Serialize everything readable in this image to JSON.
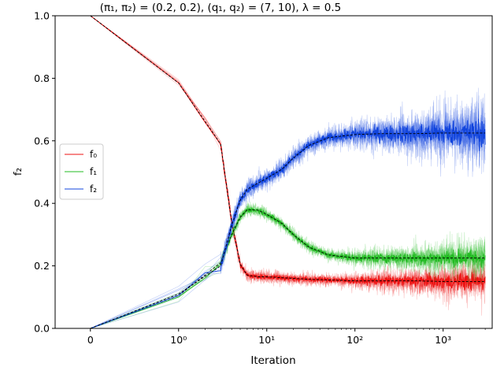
{
  "chart_data": {
    "type": "line",
    "title": "(π₁, π₂) = (0.2, 0.2),  (q₁, q₂) = (7, 10),  λ = 0.5",
    "xlabel": "Iteration",
    "ylabel": "f₂",
    "xscale": "symlog",
    "xlim": [
      -0.4,
      3600
    ],
    "ylim": [
      0,
      1
    ],
    "x_ticks": [
      {
        "value": 0,
        "label": "0"
      },
      {
        "value": 1,
        "label": "10⁰"
      },
      {
        "value": 10,
        "label": "10¹"
      },
      {
        "value": 100,
        "label": "10²"
      },
      {
        "value": 1000,
        "label": "10³"
      }
    ],
    "y_ticks": [
      "0.0",
      "0.2",
      "0.4",
      "0.6",
      "0.8",
      "1.0"
    ],
    "legend": {
      "placement": "center-left"
    },
    "colors": {
      "f0": "#ee1111",
      "f1": "#22bb22",
      "f2": "#1144dd",
      "mean": "#000000"
    },
    "series": [
      {
        "name": "f₀",
        "key": "f0",
        "x": [
          0,
          1,
          3,
          4,
          5,
          6,
          8,
          10,
          15,
          20,
          30,
          50,
          100,
          200,
          500,
          1000,
          2000,
          3000
        ],
        "values": [
          1.0,
          0.785,
          0.59,
          0.34,
          0.205,
          0.17,
          0.165,
          0.165,
          0.162,
          0.16,
          0.157,
          0.155,
          0.152,
          0.152,
          0.152,
          0.15,
          0.15,
          0.15
        ]
      },
      {
        "name": "f₁",
        "key": "f1",
        "x": [
          0,
          1,
          3,
          4,
          5,
          6,
          8,
          10,
          15,
          20,
          30,
          50,
          100,
          200,
          500,
          1000,
          2000,
          3000
        ],
        "values": [
          0.0,
          0.105,
          0.21,
          0.3,
          0.355,
          0.38,
          0.378,
          0.365,
          0.335,
          0.3,
          0.26,
          0.235,
          0.225,
          0.225,
          0.225,
          0.225,
          0.225,
          0.225
        ]
      },
      {
        "name": "f₂",
        "key": "f2",
        "x": [
          0,
          1,
          3,
          4,
          5,
          6,
          8,
          10,
          15,
          20,
          30,
          50,
          100,
          200,
          500,
          1000,
          2000,
          3000
        ],
        "values": [
          0.0,
          0.11,
          0.2,
          0.33,
          0.41,
          0.445,
          0.465,
          0.48,
          0.51,
          0.545,
          0.585,
          0.61,
          0.62,
          0.623,
          0.623,
          0.625,
          0.625,
          0.625
        ]
      }
    ]
  }
}
